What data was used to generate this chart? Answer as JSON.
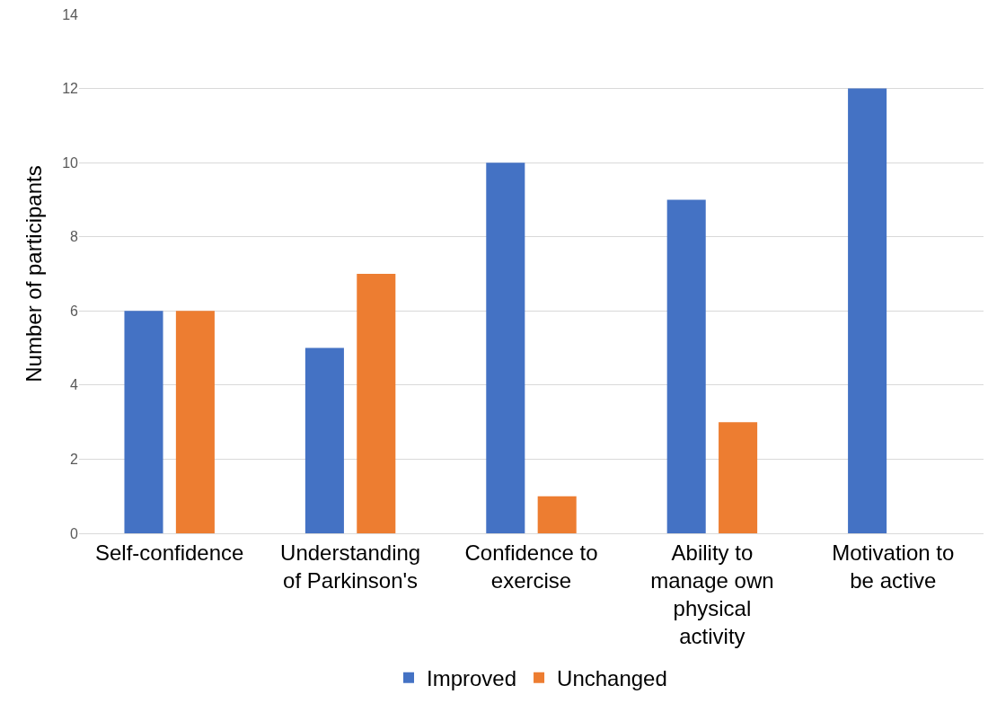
{
  "chart_data": {
    "type": "bar",
    "ylabel": "Number of participants",
    "categories": [
      "Self-confidence",
      "Understanding of Parkinson's",
      "Confidence to exercise",
      "Ability to manage own physical activity",
      "Motivation to be active"
    ],
    "series": [
      {
        "name": "Improved",
        "color": "#4472c4",
        "values": [
          6,
          5,
          10,
          9,
          12
        ]
      },
      {
        "name": "Unchanged",
        "color": "#ed7d31",
        "values": [
          6,
          7,
          1,
          3,
          0
        ]
      }
    ],
    "ylim": [
      0,
      14
    ],
    "yticks": [
      0,
      2,
      4,
      6,
      8,
      10,
      12,
      14
    ],
    "grid": "y",
    "legend": "bottom"
  }
}
